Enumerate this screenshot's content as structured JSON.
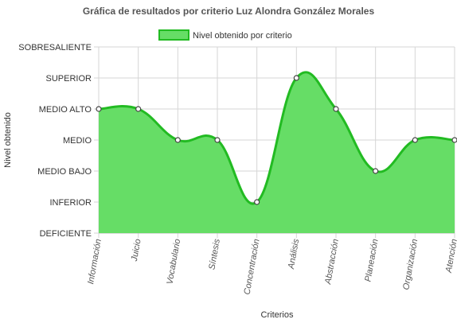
{
  "chart_data": {
    "type": "area",
    "title": "Gráfica de resultados por criterio Luz Alondra González Morales",
    "xlabel": "Criterios",
    "ylabel": "Nivel obtenido",
    "y_levels": [
      "DEFICIENTE",
      "INFERIOR",
      "MEDIO BAJO",
      "MEDIO",
      "MEDIO ALTO",
      "SUPERIOR",
      "SOBRESALIENTE"
    ],
    "ylim": [
      0,
      6
    ],
    "categories": [
      "Información",
      "Juicio",
      "Vocabulario",
      "Síntesis",
      "Concentración",
      "Análisis",
      "Abstracción",
      "Planeación",
      "Organización",
      "Atención"
    ],
    "series": [
      {
        "name": "Nivel obtenido por criterio",
        "values": [
          4,
          4,
          3,
          3,
          1,
          5,
          4,
          2,
          3,
          3
        ],
        "levels": [
          "MEDIO ALTO",
          "MEDIO ALTO",
          "MEDIO",
          "MEDIO",
          "INFERIOR",
          "SUPERIOR",
          "MEDIO ALTO",
          "MEDIO BAJO",
          "MEDIO",
          "MEDIO"
        ]
      }
    ],
    "grid": true,
    "legend_position": "top-center",
    "colors": {
      "fill": "#66dd66",
      "line": "#22bb22",
      "point_fill": "#ffffff",
      "point_stroke": "#444444",
      "grid": "#d6d6d6"
    }
  }
}
